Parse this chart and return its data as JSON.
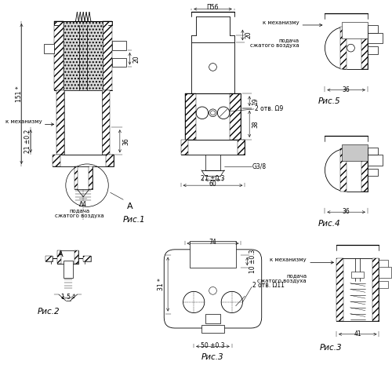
{
  "bg_color": "#ffffff",
  "fig1_label": "Рис.1",
  "fig2_label": "Рис.2",
  "fig3_label": "Рис.3",
  "fig4_label": "Рис.4",
  "fig5_label": "Рис.5",
  "dim_151": "151 *",
  "dim_36_fig1": "36",
  "dim_21": "21 ±0.2",
  "dim_4": "Δ4",
  "dim_20": "20",
  "dim_19": "19",
  "dim_38": "38",
  "dim_56": "Π56",
  "dim_60": "60",
  "dim_27": "27 ±0.3",
  "dim_g38": "G3/8",
  "dim_2otv9": "2 отв. Ω9",
  "dim_74": "74",
  "dim_50": "50 ±0.3",
  "dim_31": "31 *",
  "dim_10": "10 ±0.3",
  "dim_2otv11": "2 отв. Ω11",
  "dim_36_fig4": "36",
  "dim_36_fig5": "36",
  "dim_41": "41",
  "dim_15": "1.5 *",
  "text_k_mech1": "к механизму",
  "text_podacha1": "подача\nсжатого воздуха",
  "text_k_mech3": "к механизму",
  "text_podacha3": "подача\nсжатого воздуха",
  "text_k_mech5": "к механизму",
  "text_podacha5": "подача\nсжатого воздуха",
  "label_A_fig1": "A",
  "label_A_fig2": "A",
  "font_size_dims": 5.5,
  "font_size_rис": 7.5
}
